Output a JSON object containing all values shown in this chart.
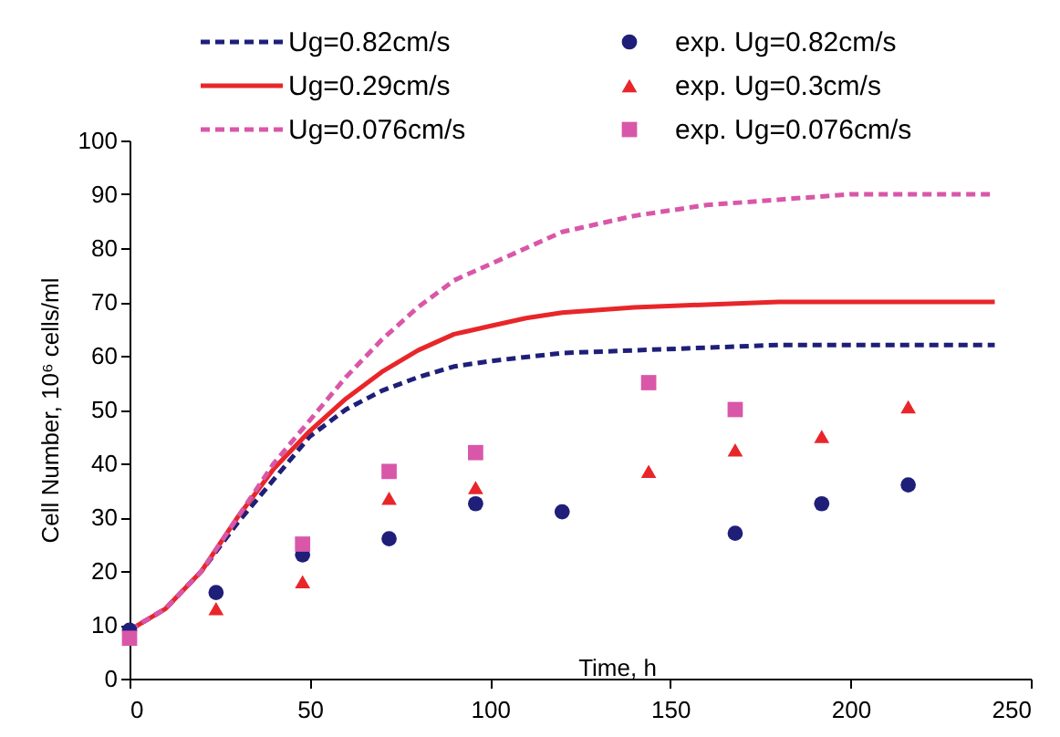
{
  "chart_data": {
    "type": "line",
    "xlabel": "Time, h",
    "ylabel": "Cell Number, 10⁶ cells/ml",
    "xlim": [
      0,
      250
    ],
    "ylim": [
      0,
      100
    ],
    "xticks": [
      0,
      50,
      100,
      150,
      200,
      250
    ],
    "yticks": [
      0,
      10,
      20,
      30,
      40,
      50,
      60,
      70,
      80,
      90,
      100
    ],
    "grid": false,
    "legend": "top",
    "series": [
      {
        "name": "Ug=0.82cm/s",
        "line_style": "dashed",
        "color": "#1f1f7a",
        "x": [
          0,
          10,
          20,
          30,
          40,
          50,
          60,
          70,
          80,
          90,
          100,
          120,
          140,
          160,
          180,
          200,
          220,
          240
        ],
        "values": [
          9,
          13,
          20,
          29,
          37,
          45,
          50,
          53.5,
          56,
          58,
          59,
          60.5,
          61,
          61.5,
          62,
          62,
          62,
          62
        ]
      },
      {
        "name": "Ug=0.29cm/s",
        "line_style": "solid",
        "color": "#e8262a",
        "x": [
          0,
          10,
          20,
          30,
          40,
          50,
          60,
          70,
          80,
          90,
          100,
          110,
          120,
          140,
          160,
          180,
          200,
          220,
          240
        ],
        "values": [
          9,
          13,
          20,
          30,
          39,
          46,
          52,
          57,
          61,
          64,
          65.5,
          67,
          68,
          69,
          69.5,
          70,
          70,
          70,
          70
        ]
      },
      {
        "name": "Ug=0.076cm/s",
        "line_style": "dashed",
        "color": "#d957a8",
        "x": [
          0,
          10,
          20,
          30,
          40,
          50,
          60,
          70,
          80,
          90,
          100,
          110,
          120,
          140,
          160,
          180,
          200,
          220,
          240
        ],
        "values": [
          9,
          13,
          20,
          30,
          40,
          48,
          56,
          63,
          69,
          74,
          77,
          80,
          83,
          86,
          88,
          89,
          90,
          90,
          90
        ]
      },
      {
        "name": "exp. Ug=0.82cm/s",
        "type": "scatter",
        "marker": "circle",
        "color": "#1f1f7a",
        "x": [
          0,
          24,
          48,
          72,
          96,
          120,
          168,
          192,
          216
        ],
        "values": [
          9,
          16,
          23,
          26,
          32.5,
          31,
          27,
          32.5,
          36
        ]
      },
      {
        "name": "exp. Ug=0.3cm/s",
        "type": "scatter",
        "marker": "triangle",
        "color": "#e8262a",
        "x": [
          24,
          48,
          72,
          96,
          144,
          168,
          192,
          216
        ],
        "values": [
          13,
          18,
          33.5,
          35.5,
          38.5,
          42.5,
          45,
          50.5
        ]
      },
      {
        "name": "exp. Ug=0.076cm/s",
        "type": "scatter",
        "marker": "square",
        "color": "#d957a8",
        "x": [
          0,
          48,
          72,
          96,
          144,
          168
        ],
        "values": [
          7.5,
          25,
          38.5,
          42,
          55,
          50
        ]
      }
    ]
  }
}
